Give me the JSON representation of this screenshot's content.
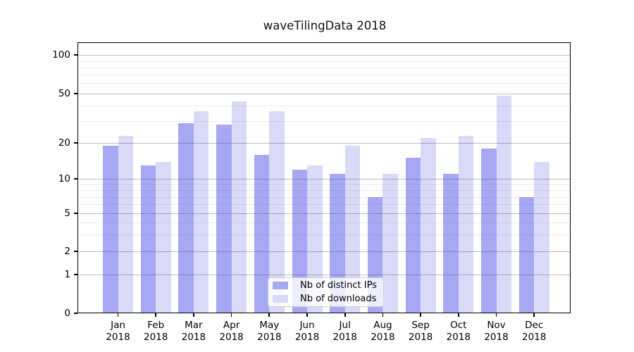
{
  "chart_data": {
    "type": "bar",
    "title": "waveTilingData 2018",
    "xlabel": "",
    "ylabel": "",
    "x_tick_year": "2018",
    "categories": [
      "Jan",
      "Feb",
      "Mar",
      "Apr",
      "May",
      "Jun",
      "Jul",
      "Aug",
      "Sep",
      "Oct",
      "Nov",
      "Dec"
    ],
    "series": [
      {
        "name": "Nb of distinct IPs",
        "color": "#a7a8f4",
        "values": [
          19,
          13,
          29,
          28,
          16,
          12,
          11,
          7,
          15,
          11,
          18,
          7
        ]
      },
      {
        "name": "Nb of downloads",
        "color": "#d9daf8",
        "values": [
          23,
          14,
          36,
          43,
          36,
          13,
          19,
          11,
          22,
          23,
          48,
          14
        ]
      }
    ],
    "yticks": [
      0,
      1,
      2,
      5,
      10,
      20,
      50,
      100
    ],
    "minor_gridlines": [
      3,
      4,
      6,
      7,
      8,
      9,
      30,
      40,
      60,
      70,
      80,
      90
    ],
    "scale": "log-like",
    "grid": true,
    "legend_position": "lower center"
  }
}
